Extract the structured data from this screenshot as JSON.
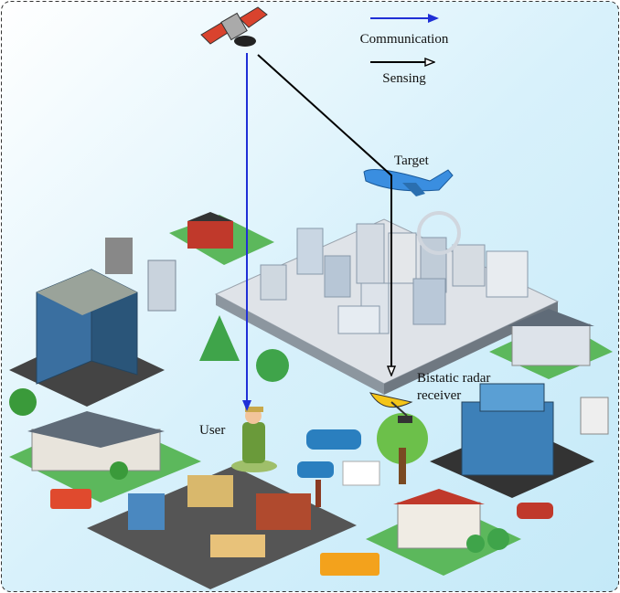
{
  "legend": {
    "communication": "Communication",
    "sensing": "Sensing"
  },
  "labels": {
    "target": "Target",
    "receiver": [
      "Bistatic radar",
      "receiver"
    ],
    "user": "User"
  }
}
